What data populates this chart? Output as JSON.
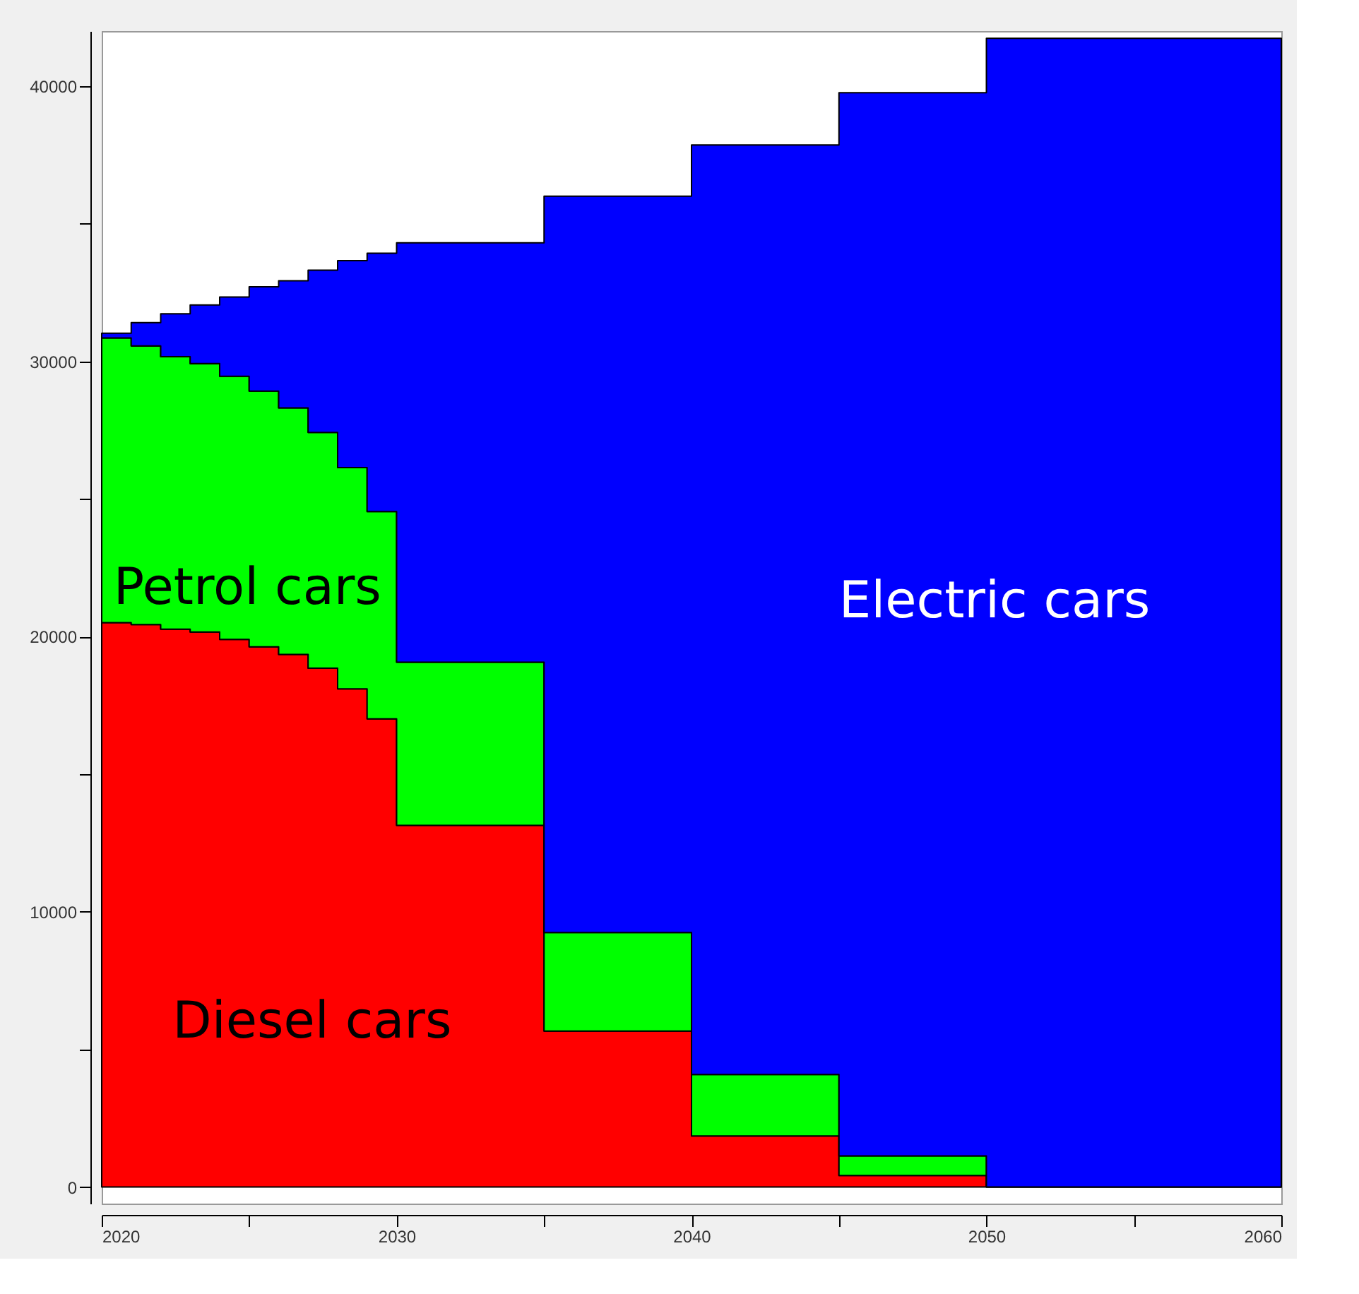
{
  "chart_data": {
    "type": "area",
    "stacked": true,
    "x": [
      2020,
      2021,
      2022,
      2023,
      2024,
      2025,
      2026,
      2027,
      2028,
      2029,
      2030,
      2035,
      2040,
      2045,
      2050,
      2060
    ],
    "series": [
      {
        "name": "Diesel cars",
        "color": "#ff0000",
        "values": [
          20510,
          20440,
          20270,
          20170,
          19900,
          19630,
          19350,
          18850,
          18100,
          17010,
          13140,
          5670,
          1860,
          420,
          0,
          0
        ]
      },
      {
        "name": "Petrol cars",
        "color": "#00ff00",
        "values": [
          10340,
          10120,
          9900,
          9750,
          9560,
          9290,
          8960,
          8570,
          8040,
          7530,
          5930,
          3580,
          2230,
          710,
          0,
          0
        ]
      },
      {
        "name": "Electric cars",
        "color": "#0000ff",
        "values": [
          170,
          850,
          1560,
          2130,
          2880,
          3790,
          4620,
          5890,
          7520,
          9390,
          15240,
          26750,
          33770,
          38630,
          41740,
          41740
        ]
      }
    ],
    "xlim": [
      2020,
      2060
    ],
    "xticks": [
      2020,
      {
        "value": 2025,
        "label": null
      },
      2030,
      {
        "value": 2035,
        "label": null
      },
      2040,
      {
        "value": 2045,
        "label": null
      },
      2050,
      {
        "value": 2055,
        "label": null
      },
      2060
    ],
    "ylim": [
      -600,
      42000
    ],
    "yticks": [
      0,
      {
        "value": 5000,
        "label": null
      },
      10000,
      {
        "value": 15000,
        "label": null
      },
      20000,
      {
        "value": 25000,
        "label": null
      },
      30000,
      {
        "value": 35000,
        "label": null
      },
      40000
    ],
    "grid": false,
    "legend": false
  }
}
